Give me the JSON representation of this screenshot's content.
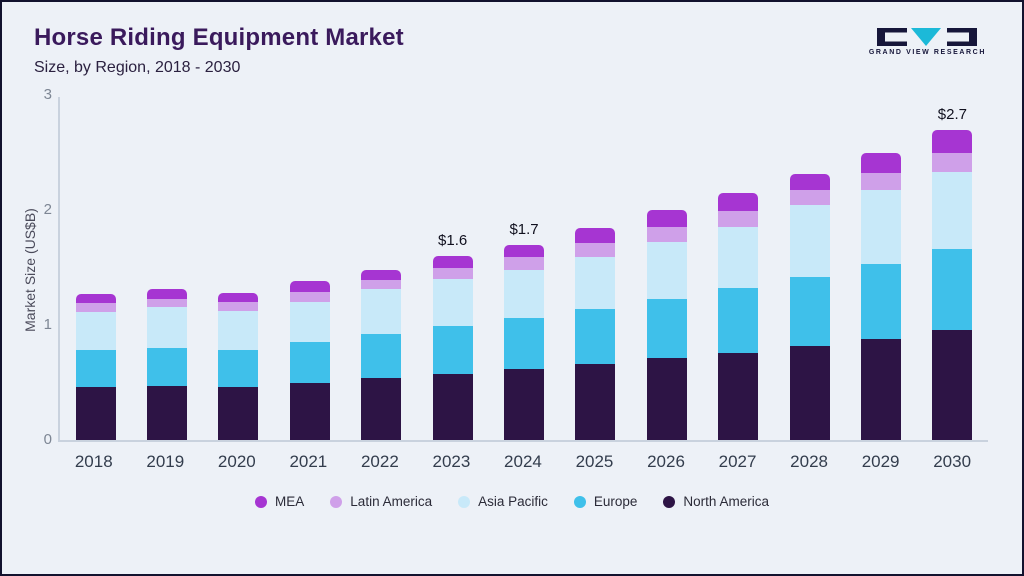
{
  "header": {
    "title": "Horse Riding Equipment Market",
    "subtitle": "Size, by Region, 2018 - 2030"
  },
  "logo": {
    "text": "GRAND VIEW RESEARCH",
    "accent_color": "#1cb9d8",
    "dark_color": "#16163a"
  },
  "chart_data": {
    "type": "bar",
    "stacked": true,
    "title": "Horse Riding Equipment Market Size, by Region, 2018 - 2030",
    "xlabel": "",
    "ylabel": "Market Size (US$B)",
    "ylim": [
      0,
      3
    ],
    "yticks": [
      0,
      1,
      2,
      3
    ],
    "grid": false,
    "legend_position": "bottom",
    "categories": [
      "2018",
      "2019",
      "2020",
      "2021",
      "2022",
      "2023",
      "2024",
      "2025",
      "2026",
      "2027",
      "2028",
      "2029",
      "2030"
    ],
    "series": [
      {
        "name": "North America",
        "color": "#2d1445",
        "values": [
          0.46,
          0.47,
          0.46,
          0.5,
          0.54,
          0.57,
          0.62,
          0.66,
          0.71,
          0.76,
          0.82,
          0.88,
          0.96
        ]
      },
      {
        "name": "Europe",
        "color": "#3fc0ea",
        "values": [
          0.32,
          0.33,
          0.32,
          0.35,
          0.38,
          0.42,
          0.44,
          0.48,
          0.52,
          0.56,
          0.6,
          0.65,
          0.7
        ]
      },
      {
        "name": "Asia Pacific",
        "color": "#c8e9f9",
        "values": [
          0.33,
          0.36,
          0.34,
          0.35,
          0.39,
          0.41,
          0.42,
          0.45,
          0.49,
          0.53,
          0.62,
          0.64,
          0.67
        ]
      },
      {
        "name": "Latin America",
        "color": "#cfa0e9",
        "values": [
          0.08,
          0.07,
          0.08,
          0.09,
          0.08,
          0.1,
          0.11,
          0.12,
          0.13,
          0.14,
          0.13,
          0.15,
          0.17
        ]
      },
      {
        "name": "MEA",
        "color": "#a635d2",
        "values": [
          0.08,
          0.08,
          0.08,
          0.09,
          0.09,
          0.1,
          0.11,
          0.13,
          0.15,
          0.16,
          0.14,
          0.18,
          0.2
        ]
      }
    ],
    "annotations": [
      {
        "category": "2023",
        "text": "$1.6"
      },
      {
        "category": "2024",
        "text": "$1.7"
      },
      {
        "category": "2030",
        "text": "$2.7"
      }
    ],
    "legend": [
      "MEA",
      "Latin America",
      "Asia Pacific",
      "Europe",
      "North America"
    ]
  }
}
